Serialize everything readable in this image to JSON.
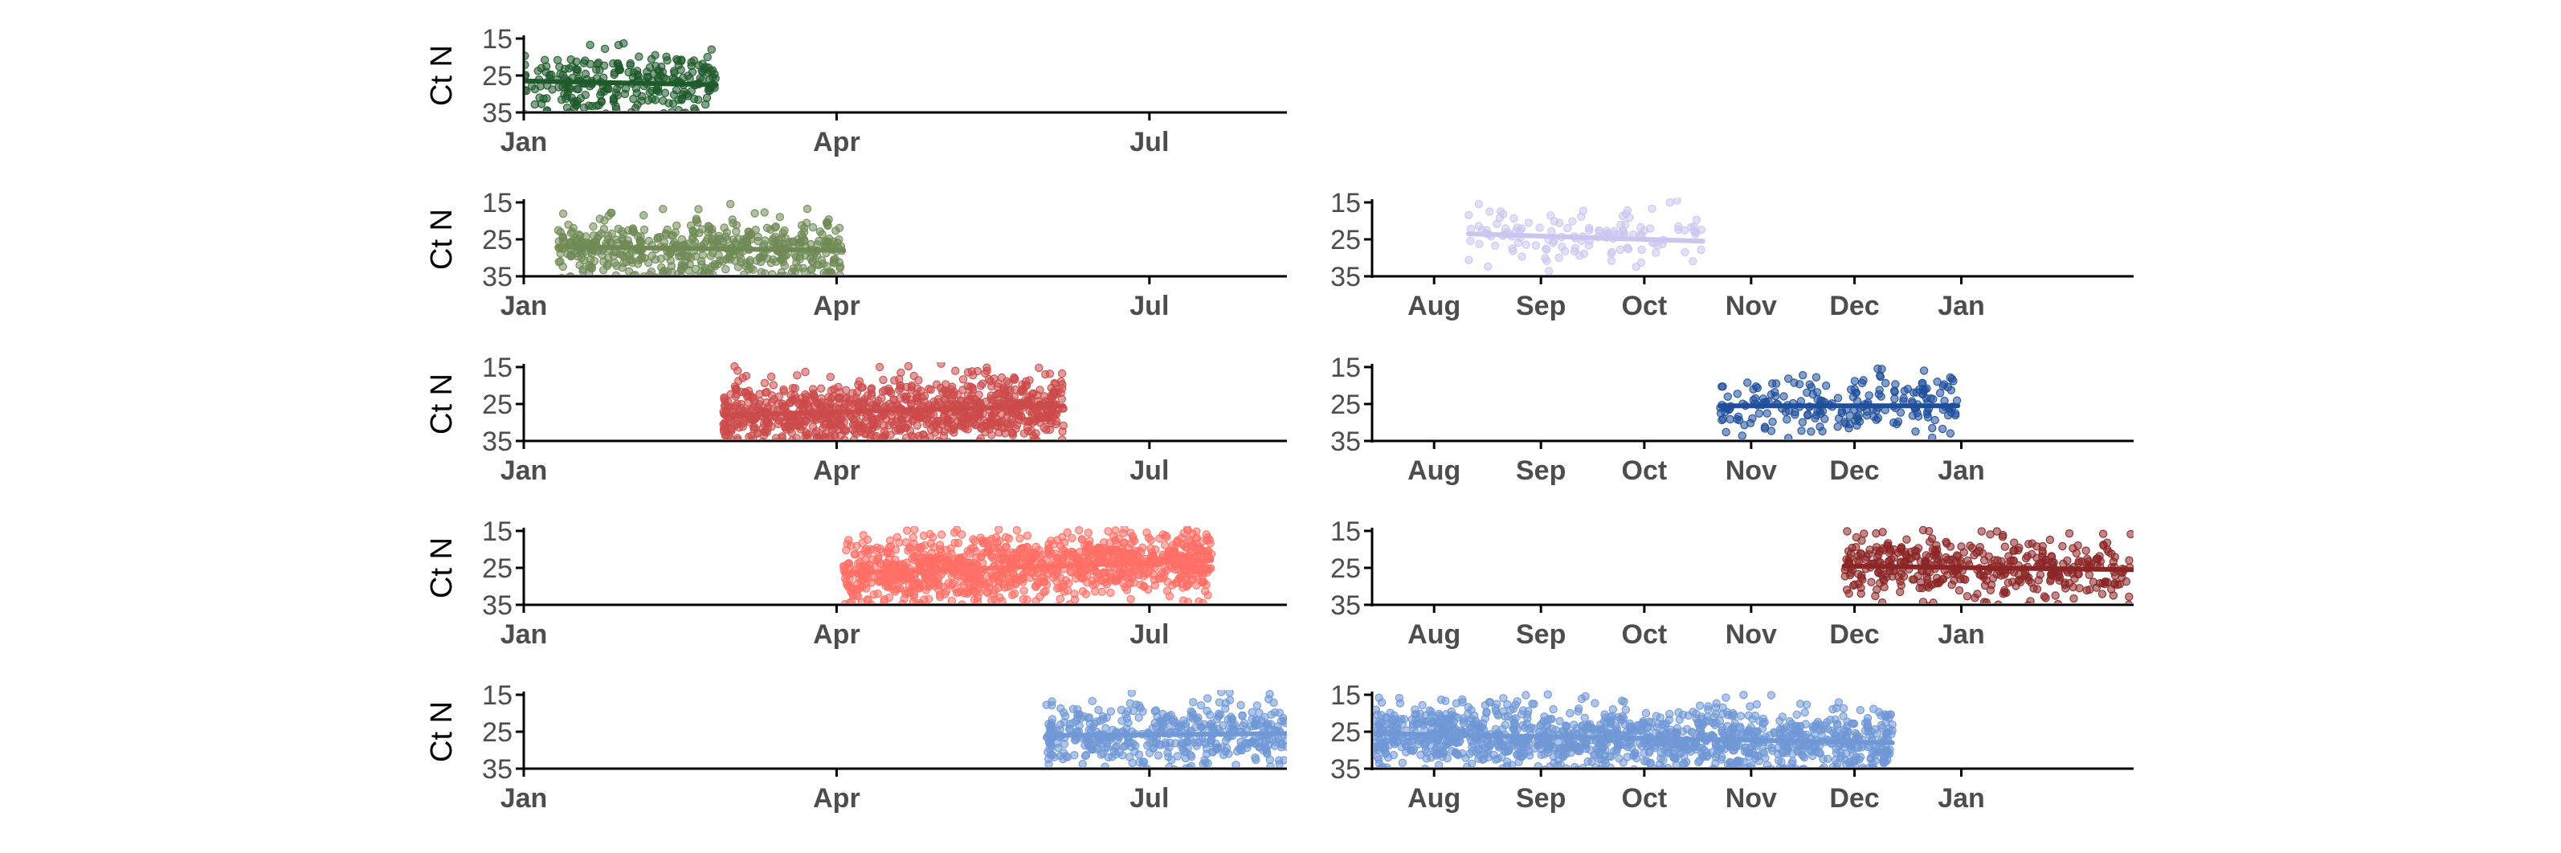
{
  "chart_data": {
    "type": "scatter",
    "ylabel": "Ct N",
    "yticks": [
      "15",
      "25",
      "35"
    ],
    "ylim": [
      15,
      35
    ],
    "yreversed": true,
    "left_axis": {
      "xlim": [
        "2020-01-01",
        "2020-08-10"
      ],
      "ticks": [
        {
          "label": "Jan",
          "date": "2020-01-01"
        },
        {
          "label": "Apr",
          "date": "2020-04-01"
        },
        {
          "label": "Jul",
          "date": "2020-07-01"
        }
      ]
    },
    "right_axis": {
      "xlim": [
        "2020-07-14",
        "2021-02-20"
      ],
      "ticks": [
        {
          "label": "Aug",
          "date": "2020-08-01"
        },
        {
          "label": "Sep",
          "date": "2020-09-01"
        },
        {
          "label": "Oct",
          "date": "2020-10-01"
        },
        {
          "label": "Nov",
          "date": "2020-11-01"
        },
        {
          "label": "Dec",
          "date": "2020-12-01"
        },
        {
          "label": "Jan",
          "date": "2021-01-01"
        }
      ]
    },
    "panels": [
      {
        "row": 0,
        "side": "left",
        "color": "#1e5a2a",
        "count": 260,
        "start": "2020-01-01",
        "end": "2020-02-26",
        "trend": [
          26.5,
          27.5
        ]
      },
      {
        "row": 1,
        "side": "left",
        "color": "#6f8a55",
        "count": 520,
        "start": "2020-01-11",
        "end": "2020-04-03",
        "trend": [
          27.0,
          28.0
        ]
      },
      {
        "row": 2,
        "side": "left",
        "color": "#cc4a4a",
        "count": 950,
        "start": "2020-02-28",
        "end": "2020-06-06",
        "trend": [
          28.0,
          25.5
        ]
      },
      {
        "row": 3,
        "side": "left",
        "color": "#ff6f66",
        "count": 1100,
        "start": "2020-04-03",
        "end": "2020-07-19",
        "trend": [
          26.5,
          23.0
        ]
      },
      {
        "row": 4,
        "side": "left",
        "color": "#7098d6",
        "count": 450,
        "start": "2020-06-01",
        "end": "2020-08-10",
        "trend": [
          26.0,
          25.5
        ]
      },
      {
        "row": 1,
        "side": "right",
        "color": "#cbc6ef",
        "count": 130,
        "start": "2020-08-11",
        "end": "2020-10-18",
        "trend": [
          23.5,
          25.5
        ]
      },
      {
        "row": 2,
        "side": "right",
        "color": "#1f4f9a",
        "count": 220,
        "start": "2020-10-23",
        "end": "2020-12-31",
        "trend": [
          25.5,
          25.5
        ]
      },
      {
        "row": 3,
        "side": "right",
        "color": "#8c2626",
        "count": 420,
        "start": "2020-11-28",
        "end": "2021-02-20",
        "trend": [
          24.5,
          25.5
        ]
      },
      {
        "row": 4,
        "side": "right",
        "color": "#7098d6",
        "count": 1300,
        "start": "2020-07-14",
        "end": "2020-12-12",
        "trend": [
          25.5,
          28.0
        ]
      }
    ]
  }
}
